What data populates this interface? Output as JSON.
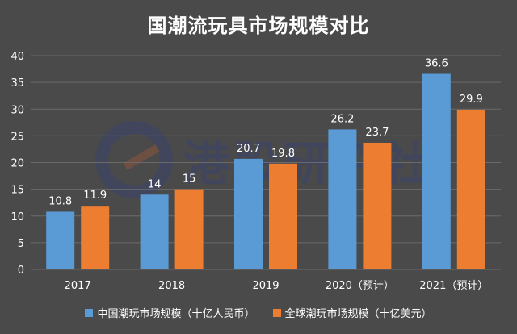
{
  "chart_data": {
    "type": "bar",
    "title": "国潮流玩具市场规模对比",
    "categories": [
      "2017",
      "2018",
      "2019",
      "2020（预计）",
      "2021（预计）"
    ],
    "series": [
      {
        "name": "中国潮玩市场规模（十亿人民币）",
        "values": [
          10.8,
          14,
          20.7,
          26.2,
          36.6
        ],
        "color": "#5b9bd5"
      },
      {
        "name": "全球潮玩市场规模（十亿美元）",
        "values": [
          11.9,
          15,
          19.8,
          23.7,
          29.9
        ],
        "color": "#ed7d31"
      }
    ],
    "ylim": [
      0,
      40
    ],
    "yticks": [
      0,
      5,
      10,
      15,
      20,
      25,
      30,
      35,
      40
    ],
    "grid": true,
    "legend": "bottom"
  },
  "watermark": {
    "text": "港股研究社"
  }
}
